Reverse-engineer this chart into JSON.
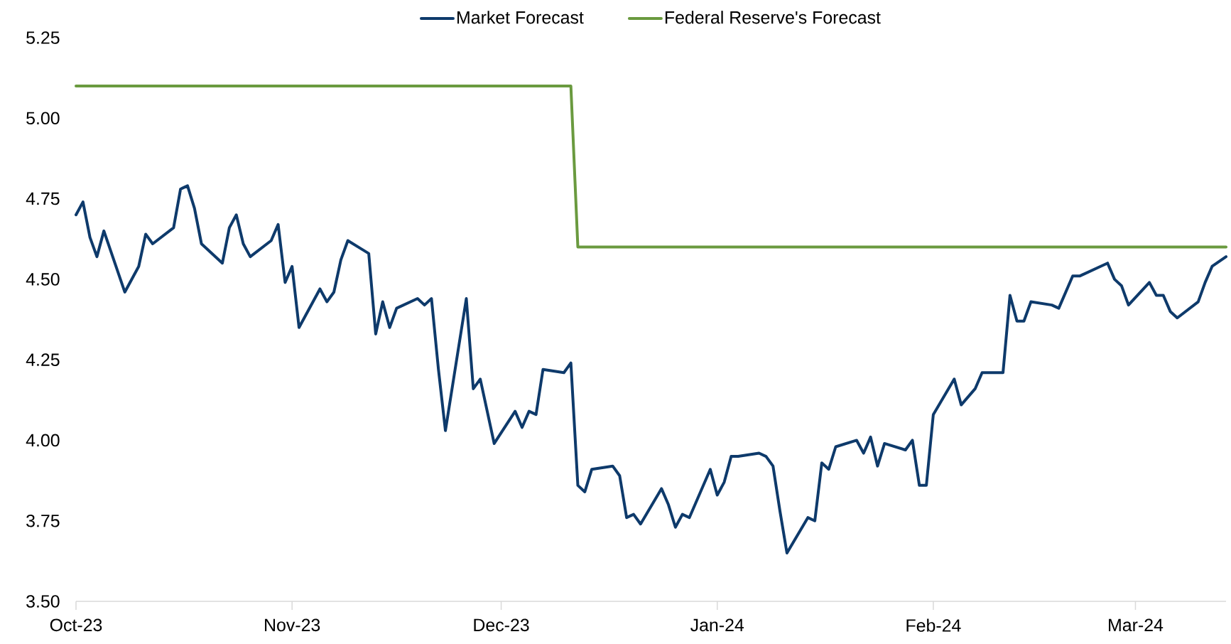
{
  "chart_data": {
    "type": "line",
    "legend": "top",
    "x": [
      "2023-10-01",
      "2023-10-02",
      "2023-10-03",
      "2023-10-04",
      "2023-10-05",
      "2023-10-08",
      "2023-10-10",
      "2023-10-11",
      "2023-10-12",
      "2023-10-15",
      "2023-10-16",
      "2023-10-17",
      "2023-10-18",
      "2023-10-19",
      "2023-10-22",
      "2023-10-23",
      "2023-10-24",
      "2023-10-25",
      "2023-10-26",
      "2023-10-29",
      "2023-10-30",
      "2023-10-31",
      "2023-11-01",
      "2023-11-02",
      "2023-11-05",
      "2023-11-06",
      "2023-11-07",
      "2023-11-08",
      "2023-11-09",
      "2023-11-12",
      "2023-11-13",
      "2023-11-14",
      "2023-11-15",
      "2023-11-16",
      "2023-11-19",
      "2023-11-20",
      "2023-11-21",
      "2023-11-22",
      "2023-11-23",
      "2023-11-26",
      "2023-11-27",
      "2023-11-28",
      "2023-11-30",
      "2023-12-03",
      "2023-12-04",
      "2023-12-05",
      "2023-12-06",
      "2023-12-07",
      "2023-12-10",
      "2023-12-11",
      "2023-12-12",
      "2023-12-13",
      "2023-12-14",
      "2023-12-17",
      "2023-12-18",
      "2023-12-19",
      "2023-12-20",
      "2023-12-21",
      "2023-12-24",
      "2023-12-25",
      "2023-12-26",
      "2023-12-27",
      "2023-12-28",
      "2023-12-31",
      "2024-01-01",
      "2024-01-02",
      "2024-01-03",
      "2024-01-04",
      "2024-01-07",
      "2024-01-08",
      "2024-01-09",
      "2024-01-10",
      "2024-01-11",
      "2024-01-14",
      "2024-01-15",
      "2024-01-16",
      "2024-01-17",
      "2024-01-18",
      "2024-01-21",
      "2024-01-22",
      "2024-01-23",
      "2024-01-24",
      "2024-01-25",
      "2024-01-28",
      "2024-01-29",
      "2024-01-30",
      "2024-01-31",
      "2024-02-01",
      "2024-02-04",
      "2024-02-05",
      "2024-02-07",
      "2024-02-08",
      "2024-02-11",
      "2024-02-12",
      "2024-02-13",
      "2024-02-14",
      "2024-02-15",
      "2024-02-18",
      "2024-02-19",
      "2024-02-21",
      "2024-02-22",
      "2024-02-25",
      "2024-02-26",
      "2024-02-27",
      "2024-02-28",
      "2024-02-29",
      "2024-03-03",
      "2024-03-04",
      "2024-03-05",
      "2024-03-06",
      "2024-03-07",
      "2024-03-10",
      "2024-03-11",
      "2024-03-12",
      "2024-03-14"
    ],
    "series": [
      {
        "name": "Market Forecast",
        "color": "#0e3a6b",
        "values": [
          4.7,
          4.74,
          4.63,
          4.57,
          4.65,
          4.46,
          4.54,
          4.64,
          4.61,
          4.66,
          4.78,
          4.79,
          4.72,
          4.61,
          4.55,
          4.66,
          4.7,
          4.61,
          4.57,
          4.62,
          4.67,
          4.49,
          4.54,
          4.35,
          4.47,
          4.43,
          4.46,
          4.56,
          4.62,
          4.58,
          4.33,
          4.43,
          4.35,
          4.41,
          4.44,
          4.42,
          4.44,
          4.22,
          4.03,
          4.44,
          4.16,
          4.19,
          3.99,
          4.09,
          4.04,
          4.09,
          4.08,
          4.22,
          4.21,
          4.24,
          3.86,
          3.84,
          3.91,
          3.92,
          3.89,
          3.76,
          3.77,
          3.74,
          3.85,
          3.8,
          3.73,
          3.77,
          3.76,
          3.91,
          3.83,
          3.87,
          3.95,
          3.95,
          3.96,
          3.95,
          3.92,
          3.78,
          3.65,
          3.76,
          3.75,
          3.93,
          3.91,
          3.98,
          4.0,
          3.96,
          4.01,
          3.92,
          3.99,
          3.97,
          4.0,
          3.86,
          3.86,
          4.08,
          4.19,
          4.11,
          4.16,
          4.21,
          4.21,
          4.45,
          4.37,
          4.37,
          4.43,
          4.42,
          4.41,
          4.51,
          4.51,
          4.54,
          4.55,
          4.5,
          4.48,
          4.42,
          4.49,
          4.45,
          4.45,
          4.4,
          4.38,
          4.43,
          4.49,
          4.54,
          4.57
        ]
      },
      {
        "name": "Federal Reserve's Forecast",
        "color": "#6a9a3f",
        "x": [
          "2023-10-01",
          "2023-12-11",
          "2023-12-12",
          "2024-03-14"
        ],
        "values": [
          5.1,
          5.1,
          4.6,
          4.6
        ]
      }
    ],
    "xlim": [
      "2023-10-01",
      "2024-03-14"
    ],
    "xticks": [
      {
        "value": "2023-10-01",
        "label": "Oct-23"
      },
      {
        "value": "2023-11-01",
        "label": "Nov-23"
      },
      {
        "value": "2023-12-01",
        "label": "Dec-23"
      },
      {
        "value": "2024-01-01",
        "label": "Jan-24"
      },
      {
        "value": "2024-02-01",
        "label": "Feb-24"
      },
      {
        "value": "2024-03-01",
        "label": "Mar-24"
      }
    ],
    "ylim": [
      3.5,
      5.25
    ],
    "yticks": [
      {
        "value": 3.5,
        "label": "3.50"
      },
      {
        "value": 3.75,
        "label": "3.75"
      },
      {
        "value": 4.0,
        "label": "4.00"
      },
      {
        "value": 4.25,
        "label": "4.25"
      },
      {
        "value": 4.5,
        "label": "4.50"
      },
      {
        "value": 4.75,
        "label": "4.75"
      },
      {
        "value": 5.0,
        "label": "5.00"
      },
      {
        "value": 5.25,
        "label": "5.25"
      }
    ]
  }
}
